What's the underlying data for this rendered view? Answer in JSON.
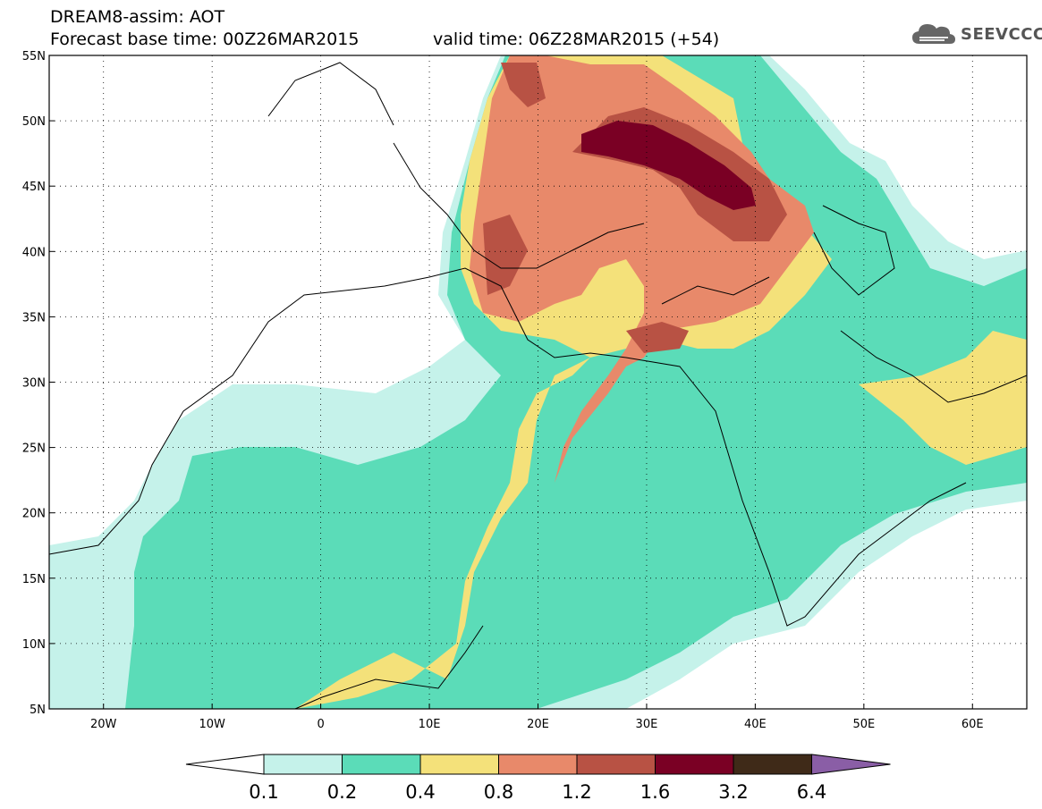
{
  "header": {
    "model_field": "DREAM8-assim: AOT",
    "base_time": "Forecast base time: 00Z26MAR2015",
    "valid_time": "valid time: 06Z28MAR2015 (+54)",
    "logo_text": "SEEVCCC",
    "logo_icon": "cloud-icon"
  },
  "map": {
    "lon_range": [
      -25,
      65
    ],
    "lat_range": [
      5,
      55
    ],
    "lat_ticks": [
      "5N",
      "10N",
      "15N",
      "20N",
      "25N",
      "30N",
      "35N",
      "40N",
      "45N",
      "50N",
      "55N"
    ],
    "lon_ticks": [
      "20W",
      "10W",
      "0",
      "10E",
      "20E",
      "30E",
      "40E",
      "50E",
      "60E"
    ],
    "grid": "dotted"
  },
  "colorbar": {
    "labels": [
      "0.1",
      "0.2",
      "0.4",
      "0.8",
      "1.2",
      "1.6",
      "3.2",
      "6.4"
    ],
    "colors": [
      "#ffffff",
      "#c5f2ea",
      "#5bdcb8",
      "#f4e17a",
      "#e8896a",
      "#b85244",
      "#7a0024",
      "#3f2a18",
      "#8a5ea6"
    ]
  }
}
